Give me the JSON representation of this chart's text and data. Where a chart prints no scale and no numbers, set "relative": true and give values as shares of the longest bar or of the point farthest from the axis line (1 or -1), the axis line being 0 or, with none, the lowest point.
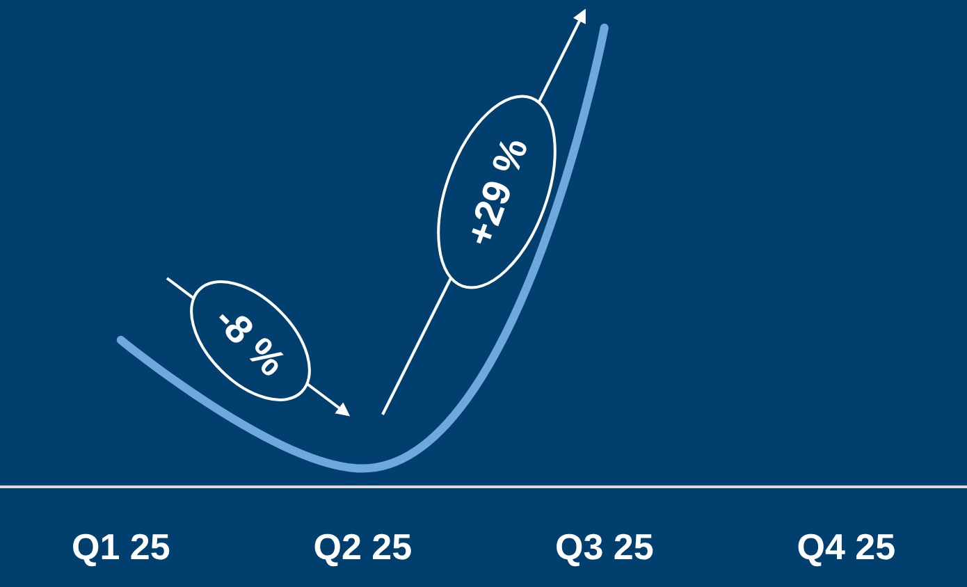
{
  "chart_data": {
    "type": "line",
    "relative": true,
    "categories": [
      "Q1 25",
      "Q2 25",
      "Q3 25",
      "Q4 25"
    ],
    "series": [
      {
        "color": "#6fa8dc",
        "values": [
          0.32,
          0.04,
          1.0,
          null
        ]
      }
    ],
    "annotations": [
      "-8 %",
      "+29 %"
    ],
    "marker": "none",
    "line_style": "solid"
  }
}
